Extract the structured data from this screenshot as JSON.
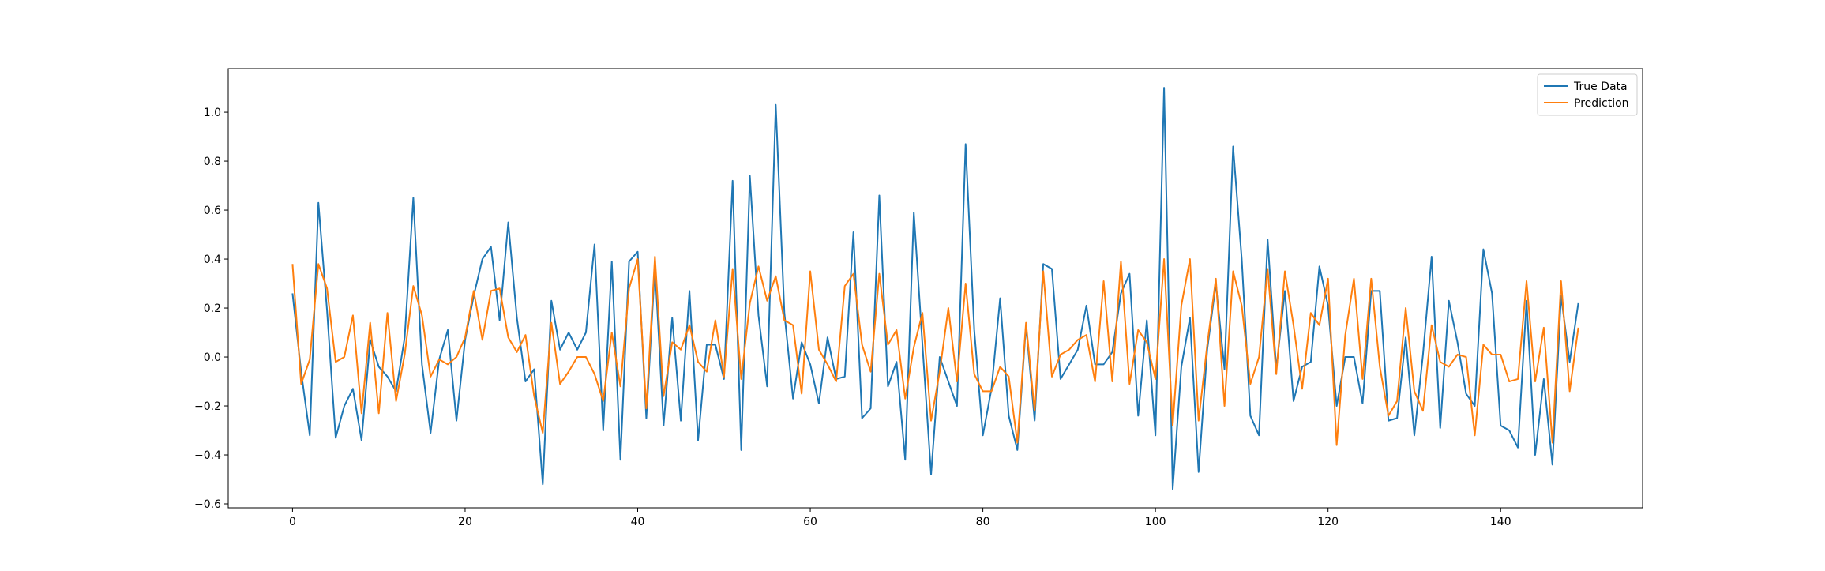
{
  "chart_data": {
    "type": "line",
    "title": "",
    "xlabel": "",
    "ylabel": "",
    "xlim": [
      -7.45,
      156.45
    ],
    "ylim": [
      -0.6161,
      1.1777
    ],
    "xticks": [
      0,
      20,
      40,
      60,
      80,
      100,
      120,
      140
    ],
    "yticks": [
      -0.6,
      -0.4,
      -0.2,
      0.0,
      0.2,
      0.4,
      0.6,
      0.8,
      1.0
    ],
    "ytick_labels": [
      "−0.6",
      "−0.4",
      "−0.2",
      "0.0",
      "0.2",
      "0.4",
      "0.6",
      "0.8",
      "1.0"
    ],
    "grid": false,
    "legend": "top-right",
    "series": [
      {
        "name": "True Data",
        "color": "#1f77b4",
        "values": [
          0.26,
          -0.06,
          -0.32,
          0.63,
          0.19,
          -0.33,
          -0.2,
          -0.13,
          -0.34,
          0.07,
          -0.04,
          -0.08,
          -0.14,
          0.08,
          0.65,
          -0.03,
          -0.31,
          -0.01,
          0.11,
          -0.26,
          0.07,
          0.25,
          0.4,
          0.45,
          0.15,
          0.55,
          0.16,
          -0.1,
          -0.05,
          -0.52,
          0.23,
          0.03,
          0.1,
          0.03,
          0.1,
          0.46,
          -0.3,
          0.39,
          -0.42,
          0.39,
          0.43,
          -0.25,
          0.37,
          -0.28,
          0.16,
          -0.26,
          0.27,
          -0.34,
          0.05,
          0.05,
          -0.09,
          0.72,
          -0.38,
          0.74,
          0.17,
          -0.12,
          1.03,
          0.18,
          -0.17,
          0.06,
          -0.03,
          -0.19,
          0.08,
          -0.09,
          -0.08,
          0.51,
          -0.25,
          -0.21,
          0.66,
          -0.12,
          -0.02,
          -0.42,
          0.59,
          0.05,
          -0.48,
          0.0,
          -0.1,
          -0.2,
          0.87,
          0.11,
          -0.32,
          -0.13,
          0.24,
          -0.24,
          -0.38,
          0.13,
          -0.26,
          0.38,
          0.36,
          -0.09,
          -0.03,
          0.03,
          0.21,
          -0.03,
          -0.03,
          0.02,
          0.26,
          0.34,
          -0.24,
          0.15,
          -0.32,
          1.1,
          -0.54,
          -0.04,
          0.16,
          -0.47,
          0.03,
          0.3,
          -0.05,
          0.86,
          0.4,
          -0.24,
          -0.32,
          0.48,
          -0.05,
          0.27,
          -0.18,
          -0.04,
          -0.02,
          0.37,
          0.21,
          -0.2,
          0.0,
          0.0,
          -0.19,
          0.27,
          0.27,
          -0.26,
          -0.25,
          0.08,
          -0.32,
          0.01,
          0.41,
          -0.29,
          0.23,
          0.06,
          -0.15,
          -0.2,
          0.44,
          0.26,
          -0.28,
          -0.3,
          -0.37,
          0.23,
          -0.4,
          -0.09,
          -0.44,
          0.25,
          -0.02,
          0.22
        ]
      },
      {
        "name": "Prediction",
        "color": "#ff7f0e",
        "values": [
          0.38,
          -0.11,
          -0.01,
          0.38,
          0.28,
          -0.02,
          0.0,
          0.17,
          -0.23,
          0.14,
          -0.23,
          0.18,
          -0.18,
          0.01,
          0.29,
          0.17,
          -0.08,
          -0.01,
          -0.03,
          0.0,
          0.08,
          0.27,
          0.07,
          0.27,
          0.28,
          0.08,
          0.02,
          0.09,
          -0.16,
          -0.31,
          0.14,
          -0.11,
          -0.06,
          0.0,
          0.0,
          -0.07,
          -0.18,
          0.1,
          -0.12,
          0.28,
          0.4,
          -0.21,
          0.41,
          -0.16,
          0.06,
          0.03,
          0.13,
          -0.02,
          -0.06,
          0.15,
          -0.08,
          0.36,
          -0.09,
          0.22,
          0.37,
          0.23,
          0.33,
          0.15,
          0.13,
          -0.15,
          0.35,
          0.03,
          -0.03,
          -0.1,
          0.29,
          0.34,
          0.05,
          -0.06,
          0.34,
          0.05,
          0.11,
          -0.17,
          0.04,
          0.18,
          -0.26,
          -0.06,
          0.2,
          -0.1,
          0.3,
          -0.07,
          -0.14,
          -0.14,
          -0.04,
          -0.08,
          -0.35,
          0.14,
          -0.22,
          0.35,
          -0.08,
          0.01,
          0.03,
          0.07,
          0.09,
          -0.1,
          0.31,
          -0.1,
          0.39,
          -0.11,
          0.11,
          0.06,
          -0.09,
          0.4,
          -0.28,
          0.21,
          0.4,
          -0.26,
          0.05,
          0.32,
          -0.2,
          0.35,
          0.21,
          -0.11,
          0.0,
          0.36,
          -0.07,
          0.35,
          0.13,
          -0.13,
          0.18,
          0.13,
          0.32,
          -0.36,
          0.09,
          0.32,
          -0.09,
          0.32,
          -0.04,
          -0.24,
          -0.18,
          0.2,
          -0.14,
          -0.22,
          0.13,
          -0.02,
          -0.04,
          0.01,
          0.0,
          -0.32,
          0.05,
          0.01,
          0.01,
          -0.1,
          -0.09,
          0.31,
          -0.1,
          0.12,
          -0.35,
          0.31,
          -0.14,
          0.12
        ]
      }
    ]
  }
}
